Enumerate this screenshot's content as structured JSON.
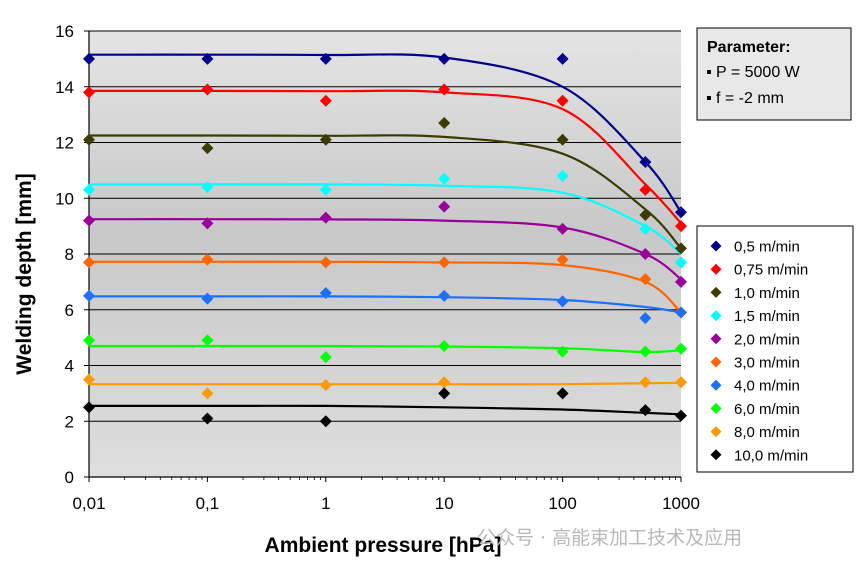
{
  "chart_data": {
    "type": "scatter",
    "title": "",
    "xlabel": "Ambient pressure [hPa]",
    "ylabel": "Welding depth [mm]",
    "x_scale": "log",
    "xlim": [
      0.01,
      1000
    ],
    "ylim": [
      0,
      16
    ],
    "x_ticks": [
      0.01,
      0.1,
      1,
      10,
      100,
      1000
    ],
    "x_tick_labels": [
      "0,01",
      "0,1",
      "1",
      "10",
      "100",
      "1000"
    ],
    "y_ticks": [
      0,
      2,
      4,
      6,
      8,
      10,
      12,
      14,
      16
    ],
    "y_tick_labels": [
      "0",
      "2",
      "4",
      "6",
      "8",
      "10",
      "12",
      "14",
      "16"
    ],
    "grid": true,
    "legend_position": "right",
    "x": [
      0.01,
      0.1,
      1,
      10,
      100,
      500,
      1000
    ],
    "series": [
      {
        "name": "0,5 m/min",
        "color": "#00008b",
        "values": [
          15.0,
          15.0,
          15.0,
          15.0,
          15.0,
          11.3,
          9.5
        ],
        "trend": [
          15.15,
          15.15,
          15.14,
          15.05,
          14.0,
          11.3,
          9.5
        ]
      },
      {
        "name": "0,75 m/min",
        "color": "#ff0000",
        "values": [
          13.8,
          13.9,
          13.5,
          13.9,
          13.5,
          10.3,
          9.0
        ],
        "trend": [
          13.85,
          13.85,
          13.84,
          13.8,
          13.2,
          10.5,
          9.1
        ]
      },
      {
        "name": "1,0 m/min",
        "color": "#3c3c00",
        "values": [
          12.1,
          11.8,
          12.1,
          12.7,
          12.1,
          9.4,
          8.2
        ],
        "trend": [
          12.25,
          12.25,
          12.24,
          12.2,
          11.6,
          9.6,
          8.2
        ]
      },
      {
        "name": "1,5 m/min",
        "color": "#00ffff",
        "values": [
          10.3,
          10.4,
          10.3,
          10.7,
          10.8,
          8.9,
          7.7
        ],
        "trend": [
          10.5,
          10.5,
          10.5,
          10.45,
          10.2,
          9.0,
          8.0
        ]
      },
      {
        "name": "2,0 m/min",
        "color": "#990099",
        "values": [
          9.2,
          9.1,
          9.3,
          9.7,
          8.9,
          8.0,
          7.0
        ],
        "trend": [
          9.25,
          9.25,
          9.24,
          9.2,
          8.95,
          8.0,
          7.1
        ]
      },
      {
        "name": "3,0 m/min",
        "color": "#ff6600",
        "values": [
          7.7,
          7.8,
          7.7,
          7.7,
          7.8,
          7.1,
          5.9
        ],
        "trend": [
          7.72,
          7.72,
          7.72,
          7.7,
          7.6,
          7.0,
          5.9
        ]
      },
      {
        "name": "4,0 m/min",
        "color": "#1e6fff",
        "values": [
          6.5,
          6.4,
          6.6,
          6.5,
          6.3,
          5.7,
          5.9
        ],
        "trend": [
          6.48,
          6.48,
          6.48,
          6.45,
          6.35,
          6.1,
          5.9
        ]
      },
      {
        "name": "6,0 m/min",
        "color": "#00ff00",
        "values": [
          4.9,
          4.9,
          4.3,
          4.7,
          4.5,
          4.5,
          4.6
        ],
        "trend": [
          4.7,
          4.7,
          4.7,
          4.68,
          4.62,
          4.48,
          4.55
        ]
      },
      {
        "name": "8,0 m/min",
        "color": "#ff9900",
        "values": [
          3.5,
          3.0,
          3.3,
          3.4,
          3.0,
          3.4,
          3.4
        ],
        "trend": [
          3.33,
          3.33,
          3.33,
          3.33,
          3.33,
          3.36,
          3.38
        ]
      },
      {
        "name": "10,0 m/min",
        "color": "#000000",
        "values": [
          2.5,
          2.1,
          2.0,
          3.0,
          3.0,
          2.4,
          2.2
        ],
        "trend": [
          2.55,
          2.55,
          2.55,
          2.5,
          2.42,
          2.3,
          2.25
        ]
      }
    ]
  },
  "parameter_box": {
    "title": "Parameter:",
    "lines": [
      "P = 5000 W",
      "f = -2 mm"
    ]
  },
  "watermark": "公众号 · 高能束加工技术及应用"
}
